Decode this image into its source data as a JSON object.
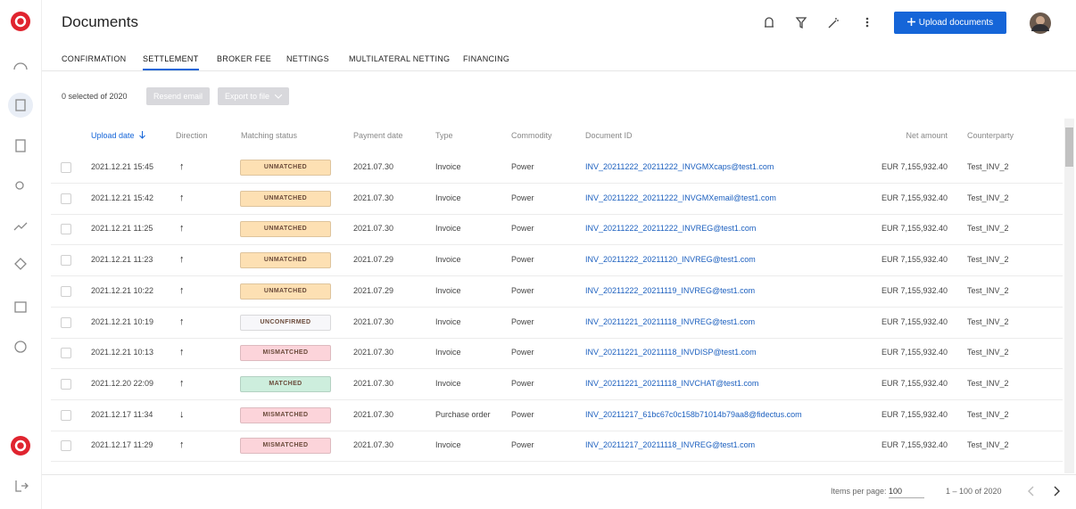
{
  "header": {
    "title": "Documents",
    "upload_button": "Upload documents"
  },
  "tabs": {
    "items": [
      "CONFIRMATION",
      "SETTLEMENT",
      "BROKER FEE",
      "NETTINGS",
      "MULTILATERAL NETTING",
      "FINANCING"
    ],
    "active": 1
  },
  "toolbar": {
    "selected": "0 selected of 2020",
    "resend": "Resend email",
    "export": "Export to file"
  },
  "table": {
    "columns": [
      "Upload date",
      "Direction",
      "Matching status",
      "Payment date",
      "Type",
      "Commodity",
      "Document ID",
      "Net amount",
      "Counterparty"
    ],
    "rows": [
      {
        "upload_date": "2021.12.21 15:45",
        "direction": "↑",
        "status": "UNMATCHED",
        "status_color": "#fde0b3",
        "payment_date": "2021.07.30",
        "type": "Invoice",
        "commodity": "Power",
        "document_id": "INV_20211222_20211222_INVGMXcaps@test1.com",
        "net_amount": "EUR 7,155,932.40",
        "counterparty": "Test_INV_2"
      },
      {
        "upload_date": "2021.12.21 15:42",
        "direction": "↑",
        "status": "UNMATCHED",
        "status_color": "#fde0b3",
        "payment_date": "2021.07.30",
        "type": "Invoice",
        "commodity": "Power",
        "document_id": "INV_20211222_20211222_INVGMXemail@test1.com",
        "net_amount": "EUR 7,155,932.40",
        "counterparty": "Test_INV_2"
      },
      {
        "upload_date": "2021.12.21 11:25",
        "direction": "↑",
        "status": "UNMATCHED",
        "status_color": "#fde0b3",
        "payment_date": "2021.07.30",
        "type": "Invoice",
        "commodity": "Power",
        "document_id": "INV_20211222_20211222_INVREG@test1.com",
        "net_amount": "EUR 7,155,932.40",
        "counterparty": "Test_INV_2"
      },
      {
        "upload_date": "2021.12.21 11:23",
        "direction": "↑",
        "status": "UNMATCHED",
        "status_color": "#fde0b3",
        "payment_date": "2021.07.29",
        "type": "Invoice",
        "commodity": "Power",
        "document_id": "INV_20211222_20211120_INVREG@test1.com",
        "net_amount": "EUR 7,155,932.40",
        "counterparty": "Test_INV_2"
      },
      {
        "upload_date": "2021.12.21 10:22",
        "direction": "↑",
        "status": "UNMATCHED",
        "status_color": "#fde0b3",
        "payment_date": "2021.07.29",
        "type": "Invoice",
        "commodity": "Power",
        "document_id": "INV_20211222_20211119_INVREG@test1.com",
        "net_amount": "EUR 7,155,932.40",
        "counterparty": "Test_INV_2"
      },
      {
        "upload_date": "2021.12.21 10:19",
        "direction": "↑",
        "status": "UNCONFIRMED",
        "status_color": "#f7f7fa",
        "payment_date": "2021.07.30",
        "type": "Invoice",
        "commodity": "Power",
        "document_id": "INV_20211221_20211118_INVREG@test1.com",
        "net_amount": "EUR 7,155,932.40",
        "counterparty": "Test_INV_2"
      },
      {
        "upload_date": "2021.12.21 10:13",
        "direction": "↑",
        "status": "MISMATCHED",
        "status_color": "#fcd4da",
        "payment_date": "2021.07.30",
        "type": "Invoice",
        "commodity": "Power",
        "document_id": "INV_20211221_20211118_INVDISP@test1.com",
        "net_amount": "EUR 7,155,932.40",
        "counterparty": "Test_INV_2"
      },
      {
        "upload_date": "2021.12.20 22:09",
        "direction": "↑",
        "status": "MATCHED",
        "status_color": "#cdeedd",
        "payment_date": "2021.07.30",
        "type": "Invoice",
        "commodity": "Power",
        "document_id": "INV_20211221_20211118_INVCHAT@test1.com",
        "net_amount": "EUR 7,155,932.40",
        "counterparty": "Test_INV_2"
      },
      {
        "upload_date": "2021.12.17 11:34",
        "direction": "↓",
        "status": "MISMATCHED",
        "status_color": "#fcd4da",
        "payment_date": "2021.07.30",
        "type": "Purchase order",
        "commodity": "Power",
        "document_id": "INV_20211217_61bc67c0c158b71014b79aa8@fidectus.com",
        "net_amount": "EUR 7,155,932.40",
        "counterparty": "Test_INV_2"
      },
      {
        "upload_date": "2021.12.17 11:29",
        "direction": "↑",
        "status": "MISMATCHED",
        "status_color": "#fcd4da",
        "payment_date": "2021.07.30",
        "type": "Invoice",
        "commodity": "Power",
        "document_id": "INV_20211217_20211118_INVREG@test1.com",
        "net_amount": "EUR 7,155,932.40",
        "counterparty": "Test_INV_2"
      }
    ]
  },
  "pagination": {
    "items_label": "Items per page:",
    "items_value": "100",
    "range": "1 – 100 of 2020"
  }
}
